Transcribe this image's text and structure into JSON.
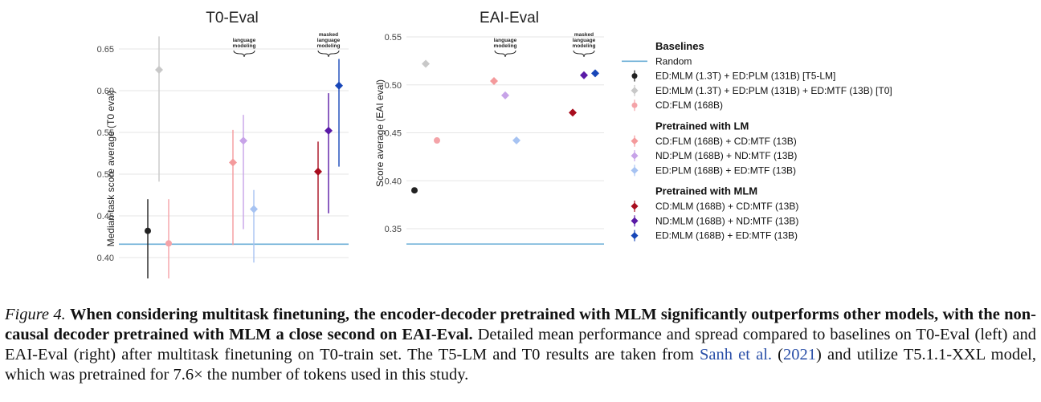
{
  "chart_data": [
    {
      "type": "scatter",
      "title": "T0-Eval",
      "ylabel": "Median task score average (T0 eval)",
      "ylim": [
        0.385,
        0.665
      ],
      "yticks": [
        "0.40",
        "0.45",
        "0.50",
        "0.55",
        "0.60",
        "0.65"
      ],
      "grid": true,
      "reference_line": {
        "name": "Random",
        "y": 0.416
      },
      "annotations": [
        "language modeling",
        "masked language modeling"
      ],
      "points": [
        {
          "series": "ED:MLM (1.3T) + ED:PLM (131B) [T5-LM]",
          "y": 0.432,
          "low": 0.375,
          "high": 0.47
        },
        {
          "series": "ED:MLM (1.3T) + ED:PLM (131B) + ED:MTF (13B) [T0]",
          "y": 0.625,
          "low": 0.491,
          "high": 0.665
        },
        {
          "series": "CD:FLM (168B)",
          "y": 0.417,
          "low": 0.375,
          "high": 0.47
        },
        {
          "series": "CD:FLM (168B) + CD:MTF (13B)",
          "y": 0.514,
          "low": 0.415,
          "high": 0.553
        },
        {
          "series": "ND:PLM (168B) + ND:MTF (13B)",
          "y": 0.54,
          "low": 0.434,
          "high": 0.571
        },
        {
          "series": "ED:PLM (168B) + ED:MTF (13B)",
          "y": 0.458,
          "low": 0.394,
          "high": 0.481
        },
        {
          "series": "CD:MLM (168B) + CD:MTF (13B)",
          "y": 0.503,
          "low": 0.421,
          "high": 0.539
        },
        {
          "series": "ND:MLM (168B) + ND:MTF (13B)",
          "y": 0.552,
          "low": 0.453,
          "high": 0.597
        },
        {
          "series": "ED:MLM (168B) + ED:MTF (13B)",
          "y": 0.606,
          "low": 0.509,
          "high": 0.638
        }
      ]
    },
    {
      "type": "scatter",
      "title": "EAI-Eval",
      "ylabel": "Score average (EAI eval)",
      "ylim": [
        0.325,
        0.555
      ],
      "yticks": [
        "0.35",
        "0.40",
        "0.45",
        "0.50",
        "0.55"
      ],
      "grid": true,
      "reference_line": {
        "name": "Random",
        "y": 0.334
      },
      "annotations": [
        "language modeling",
        "masked language modeling"
      ],
      "points": [
        {
          "series": "ED:MLM (1.3T) + ED:PLM (131B) [T5-LM]",
          "y": 0.39
        },
        {
          "series": "ED:MLM (1.3T) + ED:PLM (131B) + ED:MTF (13B) [T0]",
          "y": 0.522
        },
        {
          "series": "CD:FLM (168B)",
          "y": 0.442
        },
        {
          "series": "CD:FLM (168B) + CD:MTF (13B)",
          "y": 0.504
        },
        {
          "series": "ND:PLM (168B) + ND:MTF (13B)",
          "y": 0.489
        },
        {
          "series": "ED:PLM (168B) + ED:MTF (13B)",
          "y": 0.442
        },
        {
          "series": "CD:MLM (168B) + CD:MTF (13B)",
          "y": 0.471
        },
        {
          "series": "ND:MLM (168B) + ND:MTF (13B)",
          "y": 0.51
        },
        {
          "series": "ED:MLM (168B) + ED:MTF (13B)",
          "y": 0.512
        }
      ]
    }
  ],
  "legend": {
    "placement": "right",
    "groups": [
      {
        "title": "Baselines",
        "items": [
          {
            "label": "Random",
            "marker": "line",
            "color": "#6aaed6"
          },
          {
            "label": "ED:MLM (1.3T) + ED:PLM (131B) [T5-LM]",
            "marker": "circle",
            "color": "#222222"
          },
          {
            "label": "ED:MLM (1.3T) + ED:PLM (131B) + ED:MTF (13B) [T0]",
            "marker": "diamond",
            "color": "#c8c8c8"
          },
          {
            "label": "CD:FLM (168B)",
            "marker": "circle",
            "color": "#f4a3a8"
          }
        ]
      },
      {
        "title": "Pretrained with LM",
        "items": [
          {
            "label": "CD:FLM (168B) + CD:MTF (13B)",
            "marker": "diamond",
            "color": "#f49a9c"
          },
          {
            "label": "ND:PLM (168B) + ND:MTF (13B)",
            "marker": "diamond",
            "color": "#c7a3e8"
          },
          {
            "label": "ED:PLM (168B) + ED:MTF (13B)",
            "marker": "diamond",
            "color": "#a7c3f2"
          }
        ]
      },
      {
        "title": "Pretrained with MLM",
        "items": [
          {
            "label": "CD:MLM (168B) + CD:MTF (13B)",
            "marker": "diamond",
            "color": "#a80d1e"
          },
          {
            "label": "ND:MLM (168B) + ND:MTF (13B)",
            "marker": "diamond",
            "color": "#5a1aa6"
          },
          {
            "label": "ED:MLM (168B) + ED:MTF (13B)",
            "marker": "diamond",
            "color": "#1746b8"
          }
        ]
      }
    ]
  },
  "caption": {
    "label": "Figure 4.",
    "bold": "When considering multitask finetuning, the encoder-decoder pretrained with MLM significantly outperforms other models, with the non-causal decoder pretrained with MLM a close second on EAI-Eval.",
    "text1": "Detailed mean performance and spread compared to baselines on T0-Eval (left) and EAI-Eval (right) after multitask finetuning on T0-train set. The T5-LM and T0 results are taken from",
    "cite_author": "Sanh et al.",
    "cite_year": "2021",
    "text2": "and utilize T5.1.1-XXL model, which was pretrained for 7.6× the number of tokens used in this study."
  }
}
